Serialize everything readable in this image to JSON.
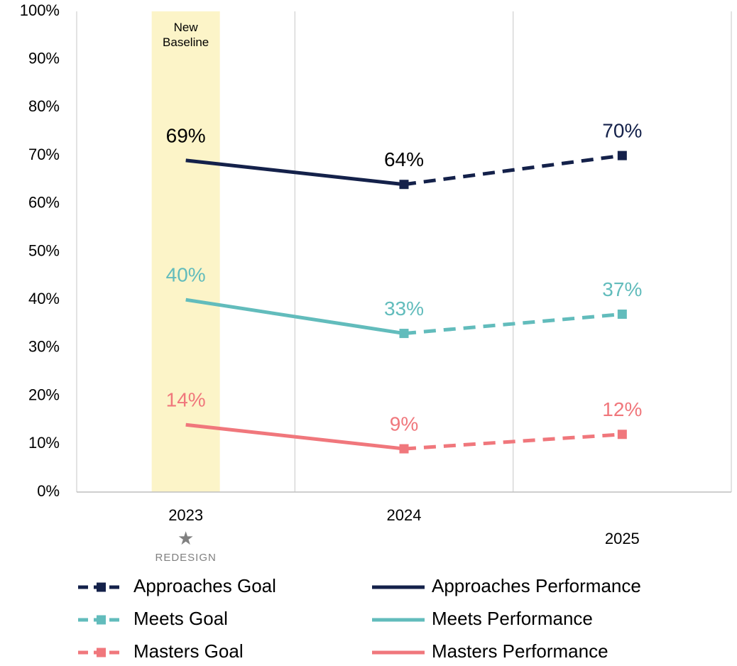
{
  "chart_data": {
    "type": "line",
    "categories": [
      "2023",
      "2024",
      "2025"
    ],
    "category_note": {
      "symbol": "★",
      "text": "REDESIGN",
      "category": "2023"
    },
    "annotations": [
      {
        "text": "New Baseline",
        "category": "2023",
        "color": "#fcf4c8"
      }
    ],
    "series": [
      {
        "name": "Approaches Goal",
        "color": "#14214a",
        "style": "dashed",
        "marker": "square",
        "values": [
          null,
          64,
          70
        ],
        "value_labels": [
          null,
          null,
          "70%"
        ]
      },
      {
        "name": "Approaches Performance",
        "color": "#14214a",
        "style": "solid",
        "values": [
          69,
          64,
          null
        ],
        "value_labels": [
          "69%",
          "64%",
          null
        ],
        "label_color": "#000000"
      },
      {
        "name": "Meets Goal",
        "color": "#62bcbc",
        "style": "dashed",
        "marker": "square",
        "values": [
          null,
          33,
          37
        ],
        "value_labels": [
          null,
          null,
          "37%"
        ]
      },
      {
        "name": "Meets Performance",
        "color": "#62bcbc",
        "style": "solid",
        "values": [
          40,
          33,
          null
        ],
        "value_labels": [
          "40%",
          "33%",
          null
        ]
      },
      {
        "name": "Masters Goal",
        "color": "#f0777c",
        "style": "dashed",
        "marker": "square",
        "values": [
          null,
          9,
          12
        ],
        "value_labels": [
          null,
          null,
          "12%"
        ]
      },
      {
        "name": "Masters Performance",
        "color": "#f0777c",
        "style": "solid",
        "values": [
          14,
          9,
          null
        ],
        "value_labels": [
          "14%",
          "9%",
          null
        ]
      }
    ],
    "ylim": [
      0,
      100
    ],
    "yticks": [
      {
        "value": 0,
        "label": "0%"
      },
      {
        "value": 10,
        "label": "10%"
      },
      {
        "value": 20,
        "label": "20%"
      },
      {
        "value": 30,
        "label": "30%"
      },
      {
        "value": 40,
        "label": "40%"
      },
      {
        "value": 50,
        "label": "50%"
      },
      {
        "value": 60,
        "label": "60%"
      },
      {
        "value": 70,
        "label": "70%"
      },
      {
        "value": 80,
        "label": "80%"
      },
      {
        "value": 90,
        "label": "90%"
      },
      {
        "value": 100,
        "label": "100%"
      }
    ],
    "grid": true,
    "legend": "bottom"
  }
}
